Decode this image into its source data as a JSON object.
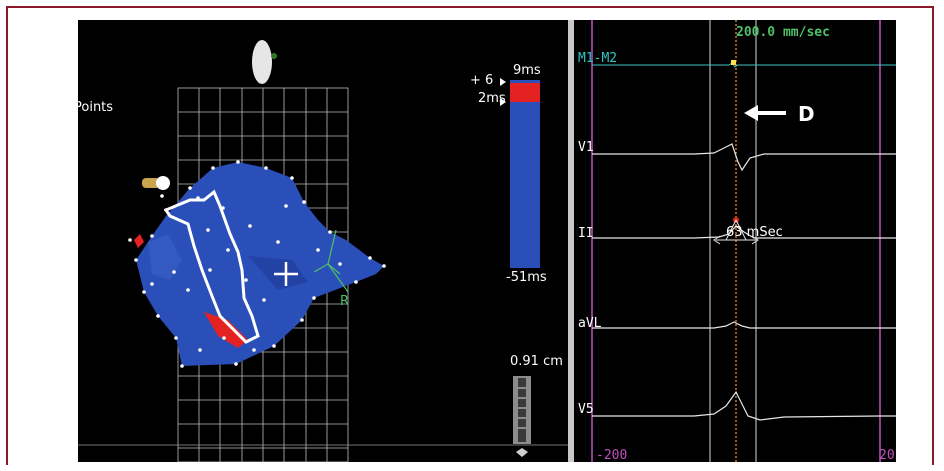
{
  "map": {
    "points_label": "Points",
    "axis_label": "R",
    "colorbar": {
      "max_label": "9ms",
      "offset_label": "+ 6",
      "mid_label": "2ms",
      "min_label": "-51ms",
      "max_ms": 9,
      "mid_ms": 2,
      "min_ms": -51
    },
    "scale_label": "0.91 cm",
    "colors": {
      "tissue": "#2a4fb8",
      "early": "#e52222",
      "outline": "#ffffff"
    }
  },
  "ecg": {
    "speed_label": "200.0 mm/sec",
    "annotation_label": "D",
    "interval_label": "63 mSec",
    "interval_ms": 63,
    "time_start_label": "-200",
    "time_end_label": "20",
    "leads": [
      {
        "name": "M1-M2"
      },
      {
        "name": "V1"
      },
      {
        "name": "II"
      },
      {
        "name": "aVL"
      },
      {
        "name": "V5"
      }
    ],
    "colors": {
      "trace": "#e6e6e6",
      "m1m2": "#3fc4c4",
      "gate": "#c050c0",
      "ref": "#ff9a3c"
    }
  }
}
